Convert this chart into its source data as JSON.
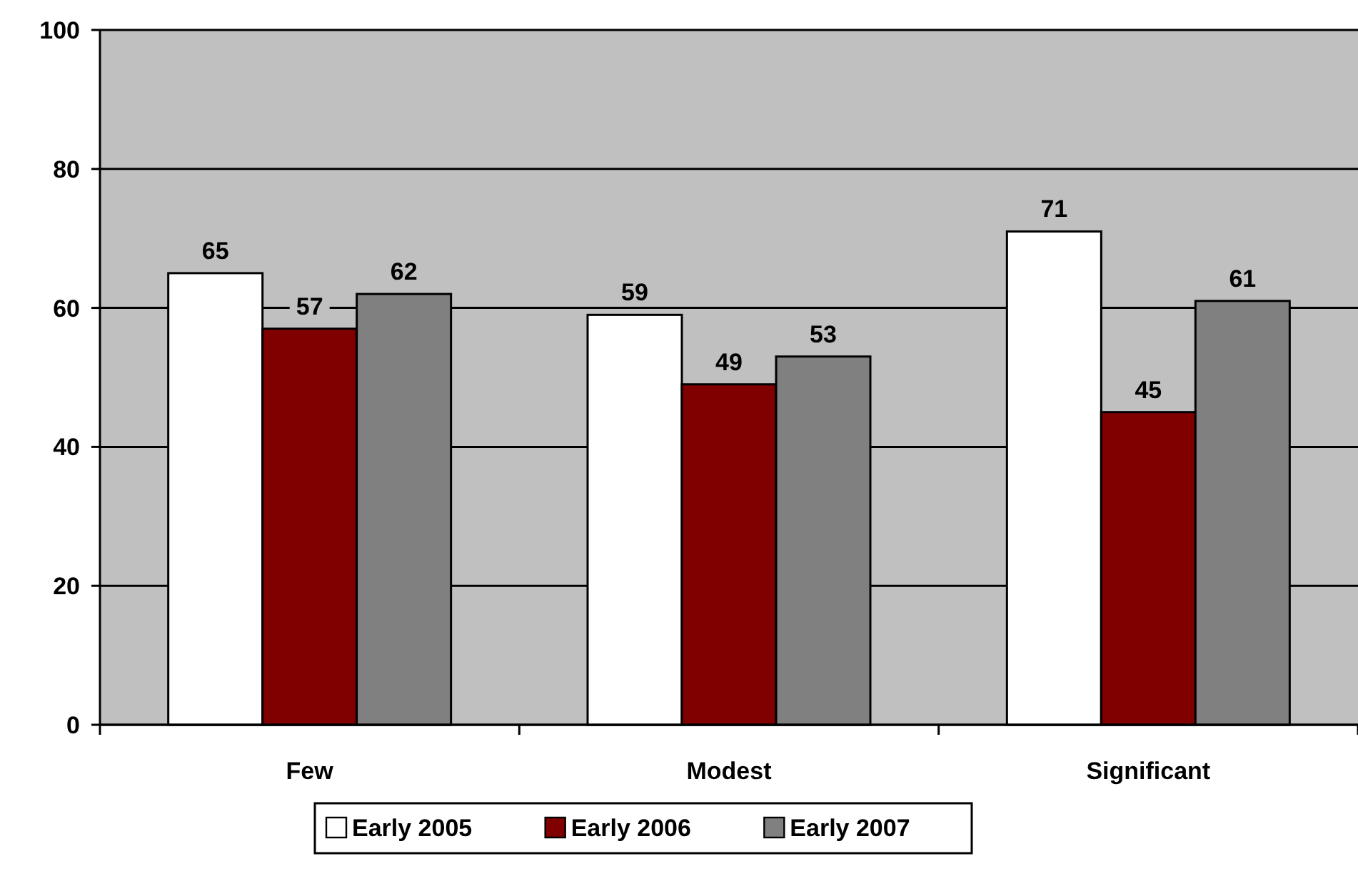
{
  "chart_data": {
    "type": "bar",
    "categories": [
      "Few",
      "Modest",
      "Significant"
    ],
    "series": [
      {
        "name": "Early 2005",
        "color": "#ffffff",
        "values": [
          65,
          59,
          71
        ]
      },
      {
        "name": "Early 2006",
        "color": "#800000",
        "values": [
          57,
          49,
          45
        ]
      },
      {
        "name": "Early 2007",
        "color": "#808080",
        "values": [
          62,
          53,
          61
        ]
      }
    ],
    "ylim": [
      0,
      100
    ],
    "yticks": [
      0,
      20,
      40,
      60,
      80,
      100
    ],
    "grid": "y",
    "data_labels": true,
    "legend": "bottom"
  }
}
